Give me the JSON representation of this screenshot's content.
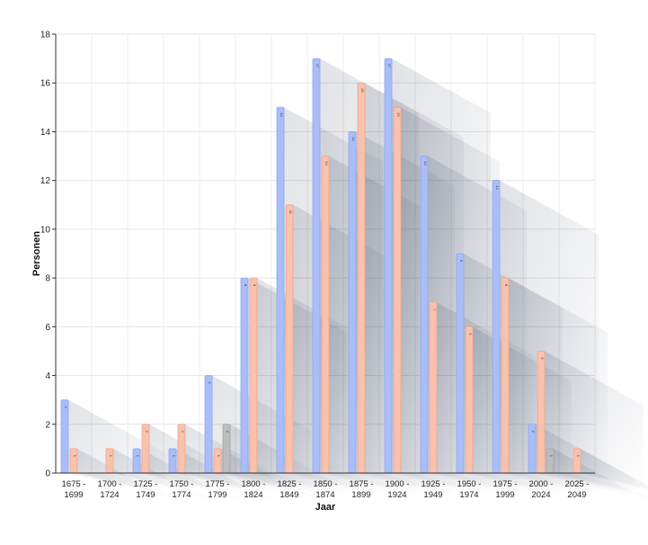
{
  "chart_data": {
    "type": "bar",
    "xlabel": "Jaar",
    "ylabel": "Personen",
    "ylim": [
      0,
      18
    ],
    "yticks": [
      0,
      2,
      4,
      6,
      8,
      10,
      12,
      14,
      16,
      18
    ],
    "grid": true,
    "categories": [
      [
        "1675 -",
        "1699"
      ],
      [
        "1700 -",
        "1724"
      ],
      [
        "1725 -",
        "1749"
      ],
      [
        "1750 -",
        "1774"
      ],
      [
        "1775 -",
        "1799"
      ],
      [
        "1800 -",
        "1824"
      ],
      [
        "1825 -",
        "1849"
      ],
      [
        "1850 -",
        "1874"
      ],
      [
        "1875 -",
        "1899"
      ],
      [
        "1900 -",
        "1924"
      ],
      [
        "1925 -",
        "1949"
      ],
      [
        "1950 -",
        "1974"
      ],
      [
        "1975 -",
        "1999"
      ],
      [
        "2000 -",
        "2024"
      ],
      [
        "2025 -",
        "2049"
      ]
    ],
    "series": [
      {
        "color": "#a9bef8",
        "stroke": "#8fa8ee",
        "values": [
          3,
          0,
          1,
          1,
          4,
          8,
          15,
          17,
          14,
          17,
          13,
          9,
          12,
          2,
          0
        ]
      },
      {
        "color": "#f8c2ad",
        "stroke": "#eba790",
        "values": [
          1,
          1,
          2,
          2,
          1,
          8,
          11,
          13,
          16,
          15,
          7,
          6,
          8,
          5,
          1
        ]
      },
      {
        "color": "#bdbdbd",
        "stroke": "#a3a3a3",
        "values": [
          0,
          0,
          0,
          0,
          2,
          0,
          0,
          0,
          0,
          0,
          0,
          0,
          0,
          1,
          0
        ]
      }
    ]
  }
}
